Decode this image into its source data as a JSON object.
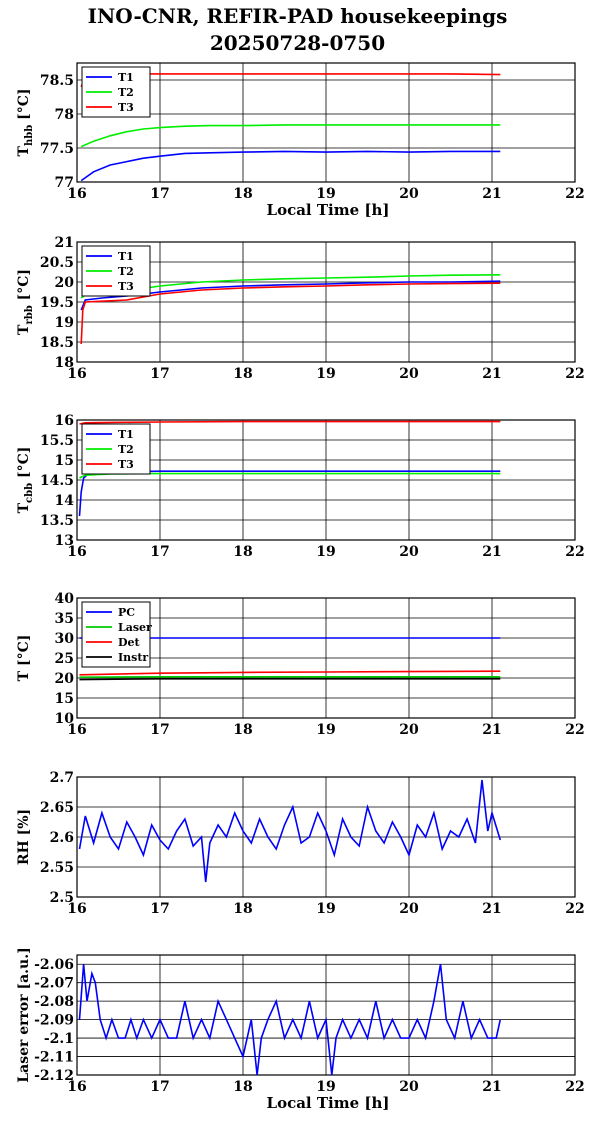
{
  "title": "INO-CNR, REFIR-PAD housekeepings",
  "subtitle": "20250728-0750",
  "colors": {
    "T1": "#0000ff",
    "T2": "#00ee00",
    "T3": "#ff0000",
    "PC": "#0000ff",
    "Laser": "#00cc00",
    "Det": "#ff0000",
    "Instr": "#000000"
  },
  "chart_data": [
    {
      "type": "line",
      "ylabel_main": "T",
      "ylabel_sub": "hbb",
      "ylabel_unit": " [°C]",
      "xlabel": "Local Time [h]",
      "xlim": [
        16,
        22
      ],
      "ylim": [
        77,
        78.75
      ],
      "xticks": [
        16,
        17,
        18,
        19,
        20,
        21,
        22
      ],
      "yticks": [
        "77",
        "77.5",
        "78",
        "78.5"
      ],
      "grid": true,
      "legend_position": "top-left",
      "series": [
        {
          "name": "T1",
          "color": "#0000ff",
          "x": [
            16.05,
            16.2,
            16.4,
            16.6,
            16.8,
            17.0,
            17.3,
            17.6,
            18.0,
            18.5,
            19.0,
            19.5,
            20.0,
            20.5,
            21.1
          ],
          "y": [
            77.02,
            77.15,
            77.25,
            77.3,
            77.35,
            77.38,
            77.42,
            77.43,
            77.44,
            77.45,
            77.44,
            77.45,
            77.44,
            77.45,
            77.45
          ]
        },
        {
          "name": "T2",
          "color": "#00ee00",
          "x": [
            16.05,
            16.2,
            16.4,
            16.6,
            16.8,
            17.0,
            17.3,
            17.6,
            18.0,
            18.5,
            19.0,
            19.5,
            20.0,
            20.5,
            21.1
          ],
          "y": [
            77.52,
            77.6,
            77.68,
            77.74,
            77.78,
            77.8,
            77.82,
            77.83,
            77.83,
            77.84,
            77.84,
            77.84,
            77.84,
            77.84,
            77.84
          ]
        },
        {
          "name": "T3",
          "color": "#ff0000",
          "x": [
            16.05,
            16.1,
            16.3,
            16.6,
            17.0,
            17.5,
            18.0,
            18.5,
            19.0,
            19.5,
            20.0,
            20.5,
            21.1
          ],
          "y": [
            78.4,
            78.55,
            78.58,
            78.59,
            78.59,
            78.59,
            78.59,
            78.59,
            78.59,
            78.59,
            78.59,
            78.59,
            78.58
          ]
        }
      ]
    },
    {
      "type": "line",
      "ylabel_main": "T",
      "ylabel_sub": "rbb",
      "ylabel_unit": " [°C]",
      "xlabel": "",
      "xlim": [
        16,
        22
      ],
      "ylim": [
        18,
        21
      ],
      "xticks": [
        16,
        17,
        18,
        19,
        20,
        21,
        22
      ],
      "yticks": [
        "18",
        "18.5",
        "19",
        "19.5",
        "20",
        "20.5",
        "21"
      ],
      "grid": true,
      "legend_position": "top-left",
      "series": [
        {
          "name": "T1",
          "color": "#0000ff",
          "x": [
            16.05,
            16.1,
            16.3,
            16.6,
            17.0,
            17.5,
            18.0,
            18.5,
            19.0,
            19.5,
            20.0,
            20.5,
            21.1
          ],
          "y": [
            19.3,
            19.55,
            19.6,
            19.65,
            19.75,
            19.85,
            19.9,
            19.93,
            19.95,
            19.98,
            20.0,
            20.0,
            20.02
          ]
        },
        {
          "name": "T2",
          "color": "#00ee00",
          "x": [
            16.05,
            16.1,
            16.3,
            16.6,
            17.0,
            17.5,
            18.0,
            18.5,
            19.0,
            19.5,
            20.0,
            20.5,
            21.1
          ],
          "y": [
            19.6,
            19.68,
            19.72,
            19.78,
            19.9,
            20.0,
            20.05,
            20.08,
            20.1,
            20.12,
            20.15,
            20.17,
            20.18
          ]
        },
        {
          "name": "T3",
          "color": "#ff0000",
          "x": [
            16.05,
            16.07,
            16.1,
            16.3,
            16.6,
            17.0,
            17.5,
            18.0,
            18.5,
            19.0,
            19.5,
            20.0,
            20.5,
            21.1
          ],
          "y": [
            18.45,
            19.3,
            19.5,
            19.52,
            19.55,
            19.7,
            19.8,
            19.85,
            19.88,
            19.9,
            19.93,
            19.95,
            19.96,
            19.97
          ]
        }
      ]
    },
    {
      "type": "line",
      "ylabel_main": "T",
      "ylabel_sub": "cbb",
      "ylabel_unit": " [°C]",
      "xlabel": "",
      "xlim": [
        16,
        22
      ],
      "ylim": [
        13,
        16
      ],
      "xticks": [
        16,
        17,
        18,
        19,
        20,
        21,
        22
      ],
      "yticks": [
        "13",
        "13.5",
        "14",
        "14.5",
        "15",
        "15.5",
        "16"
      ],
      "grid": true,
      "legend_position": "top-left",
      "series": [
        {
          "name": "T1",
          "color": "#0000ff",
          "x": [
            16.03,
            16.05,
            16.08,
            16.15,
            16.4,
            17.0,
            18.0,
            19.0,
            20.0,
            21.1
          ],
          "y": [
            13.6,
            14.2,
            14.55,
            14.68,
            14.7,
            14.72,
            14.72,
            14.72,
            14.72,
            14.72
          ]
        },
        {
          "name": "T2",
          "color": "#00ee00",
          "x": [
            16.03,
            16.1,
            16.4,
            17.0,
            18.0,
            19.0,
            20.0,
            21.1
          ],
          "y": [
            14.55,
            14.62,
            14.65,
            14.66,
            14.66,
            14.66,
            14.66,
            14.66
          ]
        },
        {
          "name": "T3",
          "color": "#ff0000",
          "x": [
            16.03,
            16.1,
            16.4,
            17.0,
            18.0,
            19.0,
            20.0,
            21.1
          ],
          "y": [
            15.9,
            15.93,
            15.94,
            15.95,
            15.96,
            15.96,
            15.96,
            15.96
          ]
        }
      ]
    },
    {
      "type": "line",
      "ylabel_main": "T [°C]",
      "ylabel_sub": "",
      "ylabel_unit": "",
      "xlabel": "",
      "xlim": [
        16,
        22
      ],
      "ylim": [
        10,
        40
      ],
      "xticks": [
        16,
        17,
        18,
        19,
        20,
        21,
        22
      ],
      "yticks": [
        "10",
        "15",
        "20",
        "25",
        "30",
        "35",
        "40"
      ],
      "grid": true,
      "legend_position": "top-left",
      "series": [
        {
          "name": "PC",
          "color": "#0000ff",
          "x": [
            16.03,
            17.0,
            18.0,
            19.0,
            20.0,
            21.1
          ],
          "y": [
            30.0,
            30.0,
            30.0,
            30.0,
            30.0,
            30.0
          ]
        },
        {
          "name": "Laser",
          "color": "#00cc00",
          "x": [
            16.03,
            17.0,
            18.0,
            19.0,
            20.0,
            21.1
          ],
          "y": [
            20.2,
            20.3,
            20.3,
            20.3,
            20.3,
            20.3
          ]
        },
        {
          "name": "Det",
          "color": "#ff0000",
          "x": [
            16.03,
            17.0,
            18.0,
            19.0,
            20.0,
            21.1
          ],
          "y": [
            20.8,
            21.2,
            21.4,
            21.5,
            21.6,
            21.7
          ]
        },
        {
          "name": "Instr",
          "color": "#000000",
          "x": [
            16.03,
            17.0,
            18.0,
            19.0,
            20.0,
            21.1
          ],
          "y": [
            19.6,
            19.8,
            19.8,
            19.8,
            19.8,
            19.8
          ]
        }
      ]
    },
    {
      "type": "line",
      "ylabel_main": "RH [%]",
      "ylabel_sub": "",
      "ylabel_unit": "",
      "xlabel": "",
      "xlim": [
        16,
        22
      ],
      "ylim": [
        2.5,
        2.7
      ],
      "xticks": [
        16,
        17,
        18,
        19,
        20,
        21,
        22
      ],
      "yticks": [
        "2.5",
        "2.55",
        "2.6",
        "2.65",
        "2.7"
      ],
      "grid": true,
      "legend_position": "",
      "series": [
        {
          "name": "",
          "color": "#0000ff",
          "x": [
            16.03,
            16.1,
            16.2,
            16.3,
            16.4,
            16.5,
            16.6,
            16.7,
            16.8,
            16.9,
            17.0,
            17.1,
            17.2,
            17.3,
            17.4,
            17.5,
            17.55,
            17.6,
            17.7,
            17.8,
            17.9,
            18.0,
            18.1,
            18.2,
            18.3,
            18.4,
            18.5,
            18.6,
            18.7,
            18.8,
            18.9,
            19.0,
            19.1,
            19.2,
            19.3,
            19.4,
            19.5,
            19.6,
            19.7,
            19.8,
            19.9,
            20.0,
            20.1,
            20.2,
            20.3,
            20.4,
            20.5,
            20.6,
            20.7,
            20.8,
            20.88,
            20.95,
            21.0,
            21.1
          ],
          "y": [
            2.58,
            2.635,
            2.59,
            2.64,
            2.6,
            2.58,
            2.625,
            2.6,
            2.57,
            2.62,
            2.595,
            2.58,
            2.61,
            2.63,
            2.585,
            2.6,
            2.525,
            2.59,
            2.62,
            2.6,
            2.64,
            2.61,
            2.59,
            2.63,
            2.6,
            2.58,
            2.62,
            2.65,
            2.59,
            2.6,
            2.64,
            2.61,
            2.57,
            2.63,
            2.6,
            2.585,
            2.65,
            2.61,
            2.59,
            2.625,
            2.6,
            2.57,
            2.62,
            2.6,
            2.64,
            2.58,
            2.61,
            2.6,
            2.63,
            2.59,
            2.695,
            2.61,
            2.64,
            2.595
          ]
        }
      ]
    },
    {
      "type": "line",
      "ylabel_main": "Laser error [a.u.]",
      "ylabel_sub": "",
      "ylabel_unit": "",
      "xlabel": "Local Time [h]",
      "xlim": [
        16,
        22
      ],
      "ylim": [
        -2.12,
        -2.055
      ],
      "xticks": [
        16,
        17,
        18,
        19,
        20,
        21,
        22
      ],
      "yticks": [
        "-2.12",
        "-2.11",
        "-2.1",
        "-2.09",
        "-2.08",
        "-2.07",
        "-2.06"
      ],
      "grid": true,
      "legend_position": "",
      "series": [
        {
          "name": "",
          "color": "#0000ff",
          "x": [
            16.03,
            16.08,
            16.12,
            16.18,
            16.22,
            16.28,
            16.35,
            16.42,
            16.5,
            16.58,
            16.65,
            16.72,
            16.8,
            16.9,
            17.0,
            17.1,
            17.2,
            17.3,
            17.4,
            17.5,
            17.6,
            17.7,
            17.8,
            17.9,
            18.0,
            18.1,
            18.17,
            18.22,
            18.3,
            18.4,
            18.5,
            18.6,
            18.7,
            18.8,
            18.9,
            19.0,
            19.07,
            19.12,
            19.2,
            19.3,
            19.4,
            19.5,
            19.6,
            19.7,
            19.8,
            19.9,
            20.0,
            20.1,
            20.2,
            20.3,
            20.38,
            20.45,
            20.55,
            20.65,
            20.75,
            20.85,
            20.95,
            21.05,
            21.1
          ],
          "y": [
            -2.09,
            -2.06,
            -2.08,
            -2.065,
            -2.07,
            -2.09,
            -2.1,
            -2.09,
            -2.1,
            -2.1,
            -2.09,
            -2.1,
            -2.09,
            -2.1,
            -2.09,
            -2.1,
            -2.1,
            -2.08,
            -2.1,
            -2.09,
            -2.1,
            -2.08,
            -2.09,
            -2.1,
            -2.11,
            -2.09,
            -2.12,
            -2.1,
            -2.09,
            -2.08,
            -2.1,
            -2.09,
            -2.1,
            -2.08,
            -2.1,
            -2.09,
            -2.12,
            -2.1,
            -2.09,
            -2.1,
            -2.09,
            -2.1,
            -2.08,
            -2.1,
            -2.09,
            -2.1,
            -2.1,
            -2.09,
            -2.1,
            -2.08,
            -2.06,
            -2.09,
            -2.1,
            -2.08,
            -2.1,
            -2.09,
            -2.1,
            -2.1,
            -2.09
          ]
        }
      ]
    }
  ]
}
